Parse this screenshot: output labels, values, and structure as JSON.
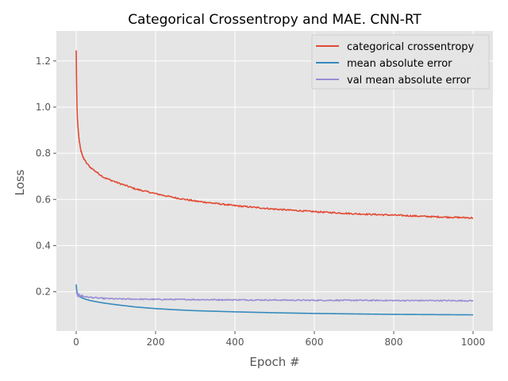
{
  "chart_data": {
    "type": "line",
    "title": "Categorical Crossentropy and MAE. CNN-RT",
    "xlabel": "Epoch #",
    "ylabel": "Loss",
    "xlim": [
      -50,
      1050
    ],
    "ylim": [
      0.03,
      1.33
    ],
    "xticks": [
      0,
      200,
      400,
      600,
      800,
      1000
    ],
    "xtick_labels": [
      "0",
      "200",
      "400",
      "600",
      "800",
      "1000"
    ],
    "yticks": [
      0.2,
      0.4,
      0.6,
      0.8,
      1.0,
      1.2
    ],
    "ytick_labels": [
      "0.2",
      "0.4",
      "0.6",
      "0.8",
      "1.0",
      "1.2"
    ],
    "grid": true,
    "legend_position": "top-right",
    "series": [
      {
        "name": "categorical crossentropy",
        "color": "#E24A33",
        "x": [
          0,
          1,
          2,
          3,
          5,
          8,
          12,
          18,
          25,
          35,
          50,
          70,
          100,
          150,
          200,
          250,
          300,
          400,
          500,
          600,
          700,
          800,
          900,
          1000
        ],
        "y": [
          1.245,
          1.1,
          1.0,
          0.95,
          0.9,
          0.85,
          0.81,
          0.78,
          0.76,
          0.74,
          0.72,
          0.695,
          0.675,
          0.645,
          0.625,
          0.607,
          0.593,
          0.573,
          0.558,
          0.547,
          0.538,
          0.532,
          0.525,
          0.52
        ],
        "noise": 0.003
      },
      {
        "name": "mean absolute error",
        "color": "#348ABD",
        "x": [
          0,
          1,
          2,
          3,
          5,
          8,
          12,
          18,
          25,
          35,
          50,
          70,
          100,
          150,
          200,
          250,
          300,
          400,
          500,
          600,
          700,
          800,
          900,
          1000
        ],
        "y": [
          0.232,
          0.21,
          0.2,
          0.195,
          0.188,
          0.181,
          0.176,
          0.171,
          0.167,
          0.162,
          0.157,
          0.151,
          0.144,
          0.134,
          0.127,
          0.122,
          0.118,
          0.113,
          0.109,
          0.106,
          0.104,
          0.102,
          0.101,
          0.1
        ],
        "noise": 0.0
      },
      {
        "name": "val mean absolute error",
        "color": "#988ED5",
        "x": [
          0,
          1,
          2,
          3,
          5,
          10,
          20,
          40,
          70,
          100,
          200,
          300,
          400,
          500,
          600,
          700,
          800,
          900,
          1000
        ],
        "y": [
          0.2,
          0.195,
          0.19,
          0.188,
          0.185,
          0.182,
          0.179,
          0.175,
          0.171,
          0.169,
          0.167,
          0.166,
          0.165,
          0.164,
          0.163,
          0.163,
          0.162,
          0.162,
          0.161
        ],
        "noise": 0.0025
      }
    ]
  }
}
